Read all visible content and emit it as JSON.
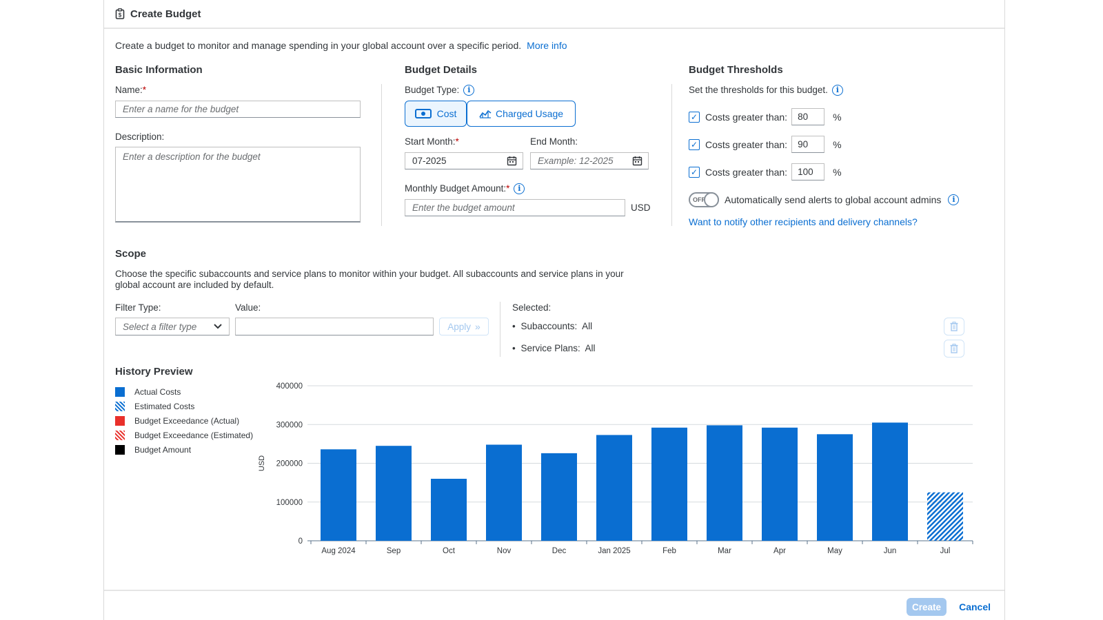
{
  "dialog": {
    "title": "Create Budget",
    "intro": "Create a budget to monitor and manage spending in your global account over a specific period.",
    "more_info": "More info"
  },
  "basic": {
    "title": "Basic Information",
    "name_label": "Name:",
    "name_placeholder": "Enter a name for the budget",
    "desc_label": "Description:",
    "desc_placeholder": "Enter a description for the budget"
  },
  "details": {
    "title": "Budget Details",
    "type_label": "Budget Type:",
    "type_cost": "Cost",
    "type_charged": "Charged Usage",
    "start_label": "Start Month:",
    "start_value": "07-2025",
    "end_label": "End Month:",
    "end_placeholder": "Example: 12-2025",
    "amount_label": "Monthly Budget Amount:",
    "amount_placeholder": "Enter the budget amount",
    "currency": "USD"
  },
  "thresholds": {
    "title": "Budget Thresholds",
    "subtitle": "Set the thresholds for this budget.",
    "rows": [
      {
        "label": "Costs greater than:",
        "value": "80",
        "unit": "%",
        "checked": true
      },
      {
        "label": "Costs greater than:",
        "value": "90",
        "unit": "%",
        "checked": true
      },
      {
        "label": "Costs greater than:",
        "value": "100",
        "unit": "%",
        "checked": true
      }
    ],
    "toggle_state": "OFF",
    "toggle_label": "Automatically send alerts to global account admins",
    "notify_link": "Want to notify other recipients and delivery channels?"
  },
  "scope": {
    "title": "Scope",
    "description": "Choose the specific subaccounts and service plans to monitor within your budget. All subaccounts and service plans in your global account are included by default.",
    "filter_label": "Filter Type:",
    "filter_placeholder": "Select a filter type",
    "value_label": "Value:",
    "apply": "Apply",
    "selected_label": "Selected:",
    "selected": [
      {
        "key": "Subaccounts:",
        "value": "All"
      },
      {
        "key": "Service Plans:",
        "value": "All"
      }
    ]
  },
  "history": {
    "title": "History Preview",
    "legend": [
      {
        "label": "Actual Costs",
        "color": "#0a6ed1",
        "pattern": "solid"
      },
      {
        "label": "Estimated Costs",
        "color": "#0a6ed1",
        "pattern": "hatched"
      },
      {
        "label": "Budget Exceedance (Actual)",
        "color": "#e9302b",
        "pattern": "solid"
      },
      {
        "label": "Budget Exceedance (Estimated)",
        "color": "#e9302b",
        "pattern": "hatched"
      },
      {
        "label": "Budget Amount",
        "color": "#000000",
        "pattern": "solid"
      }
    ]
  },
  "chart_data": {
    "type": "bar",
    "ylabel": "USD",
    "ylim": [
      0,
      400000
    ],
    "yticks": [
      "0",
      "100000",
      "200000",
      "300000",
      "400000"
    ],
    "categories": [
      "Aug 2024",
      "Sep",
      "Oct",
      "Nov",
      "Dec",
      "Jan 2025",
      "Feb",
      "Mar",
      "Apr",
      "May",
      "Jun",
      "Jul"
    ],
    "series": [
      {
        "name": "Actual Costs",
        "values": [
          236000,
          245000,
          160000,
          248000,
          226000,
          273000,
          292000,
          298000,
          292000,
          275000,
          305000,
          null
        ]
      },
      {
        "name": "Estimated Costs",
        "values": [
          null,
          null,
          null,
          null,
          null,
          null,
          null,
          null,
          null,
          null,
          null,
          125000
        ]
      }
    ],
    "grid": true
  },
  "footer": {
    "create": "Create",
    "cancel": "Cancel"
  },
  "colors": {
    "accent": "#0a6ed1",
    "required": "#bb0000"
  }
}
